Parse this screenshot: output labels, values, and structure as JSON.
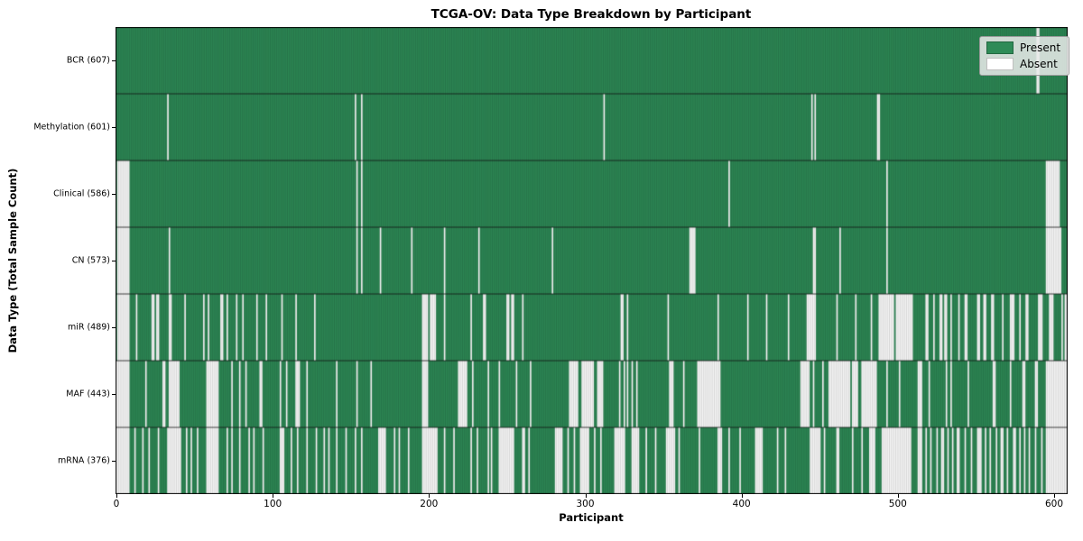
{
  "colors": {
    "present": "#2e8b57",
    "absent": "#ffffff",
    "edge": "rgba(0,0,0,0.42)",
    "separator": "#111111",
    "frame": "#000000",
    "legend_bg": "#ebebeb"
  },
  "chart_data": {
    "type": "heatmap",
    "title": "TCGA-OV: Data Type Breakdown by Participant",
    "xlabel": "Participant",
    "ylabel": "Data Type (Total Sample Count)",
    "x_range": [
      0,
      609
    ],
    "x_ticks": [
      0,
      100,
      200,
      300,
      400,
      500,
      600
    ],
    "grid": false,
    "legend_position": "upper right",
    "legend": [
      {
        "label": "Present",
        "color": "#2e8b57"
      },
      {
        "label": "Absent",
        "color": "#ffffff"
      }
    ],
    "cell_values": {
      "present": 1,
      "absent": 0
    },
    "rows": [
      {
        "label": "BCR (607)",
        "data_type": "BCR",
        "present_count": 607,
        "absent_intervals": [
          [
            589,
            2
          ]
        ]
      },
      {
        "label": "Methylation (601)",
        "data_type": "Methylation",
        "present_count": 601,
        "absent_intervals": [
          [
            33,
            1
          ],
          [
            153,
            1
          ],
          [
            157,
            1
          ],
          [
            312,
            1
          ],
          [
            445,
            1
          ],
          [
            447,
            1
          ],
          [
            487,
            2
          ]
        ]
      },
      {
        "label": "Clinical (586)",
        "data_type": "Clinical",
        "present_count": 586,
        "absent_intervals": [
          [
            1,
            8
          ],
          [
            154,
            1
          ],
          [
            157,
            1
          ],
          [
            392,
            1
          ],
          [
            493,
            1
          ],
          [
            595,
            9
          ]
        ]
      },
      {
        "label": "CN (573)",
        "data_type": "CN",
        "present_count": 573,
        "absent_intervals": [
          [
            1,
            8
          ],
          [
            34,
            1
          ],
          [
            154,
            1
          ],
          [
            157,
            1
          ],
          [
            169,
            1
          ],
          [
            189,
            1
          ],
          [
            210,
            1
          ],
          [
            232,
            1
          ],
          [
            279,
            1
          ],
          [
            367,
            4
          ],
          [
            446,
            2
          ],
          [
            463,
            1
          ],
          [
            493,
            1
          ],
          [
            595,
            10
          ]
        ]
      },
      {
        "label": "miR (489)",
        "data_type": "miR",
        "present_count": 489,
        "absent_intervals": [
          [
            1,
            8
          ],
          [
            13,
            1
          ],
          [
            23,
            2
          ],
          [
            26,
            2
          ],
          [
            34,
            2
          ],
          [
            44,
            1
          ],
          [
            56,
            1
          ],
          [
            59,
            1
          ],
          [
            67,
            2
          ],
          [
            71,
            1
          ],
          [
            77,
            1
          ],
          [
            81,
            1
          ],
          [
            90,
            1
          ],
          [
            96,
            1
          ],
          [
            106,
            1
          ],
          [
            115,
            1
          ],
          [
            127,
            1
          ],
          [
            196,
            4
          ],
          [
            201,
            4
          ],
          [
            210,
            1
          ],
          [
            227,
            1
          ],
          [
            235,
            2
          ],
          [
            250,
            2
          ],
          [
            253,
            2
          ],
          [
            260,
            1
          ],
          [
            323,
            2
          ],
          [
            327,
            1
          ],
          [
            353,
            1
          ],
          [
            385,
            1
          ],
          [
            404,
            1
          ],
          [
            416,
            1
          ],
          [
            430,
            1
          ],
          [
            442,
            6
          ],
          [
            461,
            1
          ],
          [
            473,
            1
          ],
          [
            483,
            1
          ],
          [
            488,
            10
          ],
          [
            499,
            11
          ],
          [
            518,
            2
          ],
          [
            523,
            1
          ],
          [
            527,
            2
          ],
          [
            530,
            2
          ],
          [
            534,
            1
          ],
          [
            539,
            1
          ],
          [
            543,
            2
          ],
          [
            551,
            2
          ],
          [
            555,
            2
          ],
          [
            560,
            2
          ],
          [
            567,
            1
          ],
          [
            572,
            3
          ],
          [
            578,
            1
          ],
          [
            582,
            2
          ],
          [
            590,
            3
          ],
          [
            597,
            3
          ],
          [
            605,
            1
          ],
          [
            607,
            2
          ]
        ]
      },
      {
        "label": "MAF (443)",
        "data_type": "MAF",
        "present_count": 443,
        "absent_intervals": [
          [
            0,
            9
          ],
          [
            19,
            1
          ],
          [
            30,
            2
          ],
          [
            34,
            7
          ],
          [
            58,
            8
          ],
          [
            74,
            1
          ],
          [
            79,
            1
          ],
          [
            83,
            1
          ],
          [
            92,
            2
          ],
          [
            105,
            1
          ],
          [
            109,
            1
          ],
          [
            115,
            3
          ],
          [
            122,
            1
          ],
          [
            141,
            1
          ],
          [
            154,
            1
          ],
          [
            163,
            1
          ],
          [
            196,
            4
          ],
          [
            219,
            6
          ],
          [
            228,
            1
          ],
          [
            238,
            1
          ],
          [
            245,
            1
          ],
          [
            256,
            1
          ],
          [
            265,
            1
          ],
          [
            290,
            6
          ],
          [
            298,
            8
          ],
          [
            308,
            4
          ],
          [
            322,
            1
          ],
          [
            325,
            1
          ],
          [
            327,
            1
          ],
          [
            330,
            1
          ],
          [
            333,
            1
          ],
          [
            354,
            3
          ],
          [
            363,
            1
          ],
          [
            372,
            15
          ],
          [
            438,
            6
          ],
          [
            446,
            1
          ],
          [
            452,
            1
          ],
          [
            456,
            14
          ],
          [
            471,
            4
          ],
          [
            477,
            10
          ],
          [
            493,
            1
          ],
          [
            501,
            1
          ],
          [
            513,
            3
          ],
          [
            520,
            1
          ],
          [
            531,
            1
          ],
          [
            534,
            1
          ],
          [
            545,
            1
          ],
          [
            561,
            2
          ],
          [
            572,
            1
          ],
          [
            580,
            2
          ],
          [
            588,
            2
          ],
          [
            595,
            14
          ]
        ]
      },
      {
        "label": "mRNA (376)",
        "data_type": "mRNA",
        "present_count": 376,
        "absent_intervals": [
          [
            0,
            9
          ],
          [
            12,
            1
          ],
          [
            17,
            1
          ],
          [
            21,
            1
          ],
          [
            27,
            1
          ],
          [
            33,
            9
          ],
          [
            45,
            1
          ],
          [
            48,
            1
          ],
          [
            52,
            1
          ],
          [
            58,
            8
          ],
          [
            71,
            1
          ],
          [
            74,
            1
          ],
          [
            79,
            1
          ],
          [
            85,
            1
          ],
          [
            88,
            1
          ],
          [
            94,
            1
          ],
          [
            105,
            3
          ],
          [
            112,
            1
          ],
          [
            116,
            1
          ],
          [
            122,
            1
          ],
          [
            128,
            1
          ],
          [
            133,
            1
          ],
          [
            136,
            1
          ],
          [
            141,
            1
          ],
          [
            147,
            1
          ],
          [
            153,
            1
          ],
          [
            157,
            1
          ],
          [
            168,
            5
          ],
          [
            178,
            1
          ],
          [
            181,
            1
          ],
          [
            187,
            1
          ],
          [
            196,
            10
          ],
          [
            210,
            1
          ],
          [
            216,
            1
          ],
          [
            227,
            1
          ],
          [
            231,
            1
          ],
          [
            238,
            1
          ],
          [
            240,
            1
          ],
          [
            245,
            10
          ],
          [
            260,
            2
          ],
          [
            264,
            1
          ],
          [
            281,
            5
          ],
          [
            289,
            1
          ],
          [
            293,
            1
          ],
          [
            297,
            6
          ],
          [
            306,
            1
          ],
          [
            310,
            1
          ],
          [
            319,
            7
          ],
          [
            330,
            5
          ],
          [
            339,
            1
          ],
          [
            345,
            1
          ],
          [
            352,
            6
          ],
          [
            360,
            1
          ],
          [
            373,
            1
          ],
          [
            385,
            3
          ],
          [
            392,
            1
          ],
          [
            399,
            1
          ],
          [
            409,
            5
          ],
          [
            423,
            1
          ],
          [
            428,
            1
          ],
          [
            444,
            7
          ],
          [
            453,
            1
          ],
          [
            461,
            2
          ],
          [
            471,
            1
          ],
          [
            477,
            1
          ],
          [
            482,
            4
          ],
          [
            490,
            19
          ],
          [
            513,
            3
          ],
          [
            518,
            1
          ],
          [
            521,
            1
          ],
          [
            525,
            1
          ],
          [
            528,
            2
          ],
          [
            532,
            1
          ],
          [
            535,
            1
          ],
          [
            538,
            2
          ],
          [
            543,
            1
          ],
          [
            547,
            1
          ],
          [
            551,
            3
          ],
          [
            556,
            1
          ],
          [
            559,
            1
          ],
          [
            563,
            1
          ],
          [
            566,
            2
          ],
          [
            570,
            1
          ],
          [
            574,
            2
          ],
          [
            578,
            1
          ],
          [
            581,
            1
          ],
          [
            584,
            1
          ],
          [
            588,
            1
          ],
          [
            592,
            1
          ],
          [
            595,
            14
          ]
        ]
      }
    ]
  }
}
